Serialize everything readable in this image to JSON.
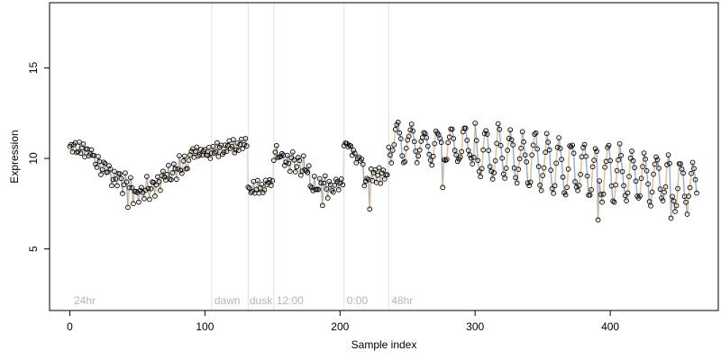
{
  "chart_data": {
    "type": "scatter",
    "xlabel": "Sample index",
    "ylabel": "Expression",
    "xlim": [
      -15,
      480
    ],
    "ylim": [
      1.6,
      18.6
    ],
    "x_ticks": [
      0,
      100,
      200,
      300,
      400
    ],
    "y_ticks": [
      5,
      10,
      15
    ],
    "grid": false,
    "legend": "none",
    "colors": {
      "orange": "#f5b041",
      "blue": "#5b8fd6",
      "gray": "#c0c0c0",
      "divider": "#e0e0e0",
      "region_text": "#b5b5b5",
      "point_stroke": "#000000"
    },
    "region_dividers": [
      105,
      132,
      151,
      203,
      236
    ],
    "region_labels": [
      {
        "text": "24hr",
        "x": 3
      },
      {
        "text": "dawn",
        "x": 107
      },
      {
        "text": "dusk",
        "x": 133
      },
      {
        "text": "12:00",
        "x": 153
      },
      {
        "text": "0:00",
        "x": 205
      },
      {
        "text": "48hr",
        "x": 238
      }
    ],
    "segments": [
      {
        "x0": 0,
        "x1": 18,
        "y0": 10.6,
        "y1": 10.3,
        "amp": 0.3,
        "period": 3,
        "noise": 0.2
      },
      {
        "x0": 18,
        "x1": 50,
        "y0": 9.9,
        "y1": 8.0,
        "amp": 0.4,
        "period": 4,
        "noise": 0.35
      },
      {
        "x0": 50,
        "x1": 90,
        "y0": 8.0,
        "y1": 9.9,
        "amp": 0.4,
        "period": 4,
        "noise": 0.3
      },
      {
        "x0": 90,
        "x1": 105,
        "y0": 10.3,
        "y1": 10.3,
        "amp": 0.2,
        "period": 3,
        "noise": 0.15
      },
      {
        "x0": 105,
        "x1": 132,
        "y0": 10.4,
        "y1": 10.8,
        "amp": 0.3,
        "period": 3,
        "noise": 0.2
      },
      {
        "x0": 132,
        "x1": 151,
        "y0": 8.3,
        "y1": 8.6,
        "amp": 0.3,
        "period": 3,
        "noise": 0.3
      },
      {
        "x0": 151,
        "x1": 178,
        "y0": 10.4,
        "y1": 9.3,
        "amp": 0.4,
        "period": 4,
        "noise": 0.3
      },
      {
        "x0": 178,
        "x1": 203,
        "y0": 8.4,
        "y1": 8.6,
        "amp": 0.4,
        "period": 4,
        "noise": 0.4
      },
      {
        "x0": 203,
        "x1": 218,
        "y0": 10.9,
        "y1": 9.6,
        "amp": 0.2,
        "period": 3,
        "noise": 0.2
      },
      {
        "x0": 218,
        "x1": 236,
        "y0": 8.8,
        "y1": 9.1,
        "amp": 0.3,
        "period": 3,
        "noise": 0.3
      },
      {
        "x0": 236,
        "x1": 300,
        "y0": 10.9,
        "y1": 10.6,
        "amp": 0.9,
        "period": 10,
        "noise": 0.3
      },
      {
        "x0": 300,
        "x1": 465,
        "y0": 10.4,
        "y1": 8.4,
        "amp": 1.4,
        "period": 9,
        "noise": 0.35
      }
    ],
    "outliers": [
      {
        "x": 222,
        "y": 7.2
      },
      {
        "x": 276,
        "y": 8.4
      },
      {
        "x": 391,
        "y": 6.6
      },
      {
        "x": 445,
        "y": 6.7
      },
      {
        "x": 43,
        "y": 7.3
      },
      {
        "x": 187,
        "y": 7.4
      }
    ]
  }
}
